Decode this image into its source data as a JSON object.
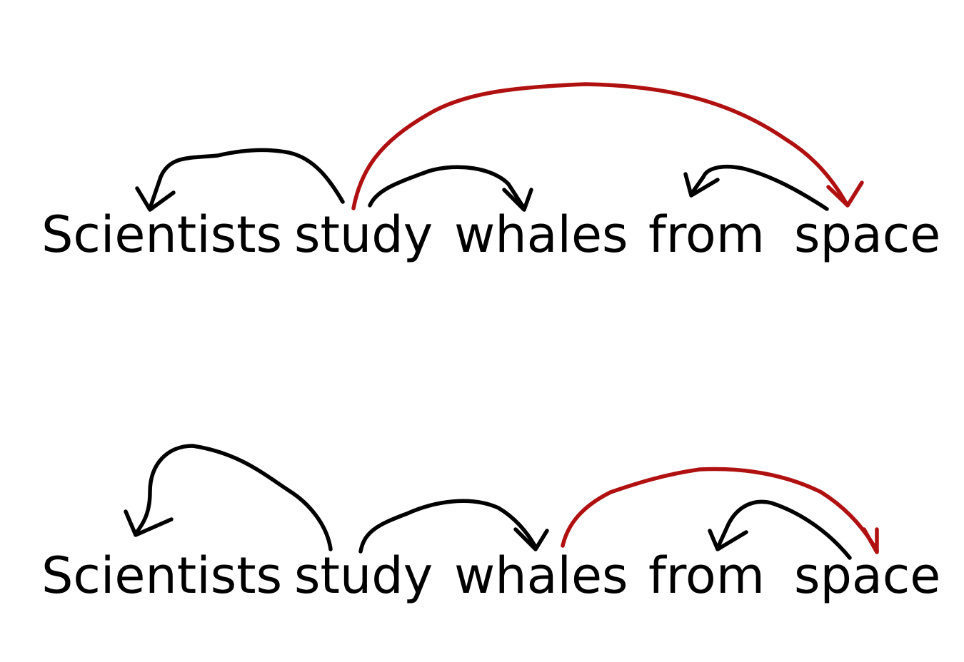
{
  "colors": {
    "text": "#000000",
    "arc_default": "#000000",
    "arc_highlight": "#b01010"
  },
  "parses": [
    {
      "words": [
        "Scientists",
        "study",
        "whales",
        "from",
        "space"
      ],
      "arcs": [
        {
          "head": "study",
          "dependent": "Scientists",
          "highlight": false
        },
        {
          "head": "study",
          "dependent": "whales",
          "highlight": false
        },
        {
          "head": "study",
          "dependent": "space",
          "highlight": true
        },
        {
          "head": "space",
          "dependent": "from",
          "highlight": false
        }
      ]
    },
    {
      "words": [
        "Scientists",
        "study",
        "whales",
        "from",
        "space"
      ],
      "arcs": [
        {
          "head": "study",
          "dependent": "Scientists",
          "highlight": false
        },
        {
          "head": "study",
          "dependent": "whales",
          "highlight": false
        },
        {
          "head": "whales",
          "dependent": "space",
          "highlight": true
        },
        {
          "head": "space",
          "dependent": "from",
          "highlight": false
        }
      ]
    }
  ]
}
